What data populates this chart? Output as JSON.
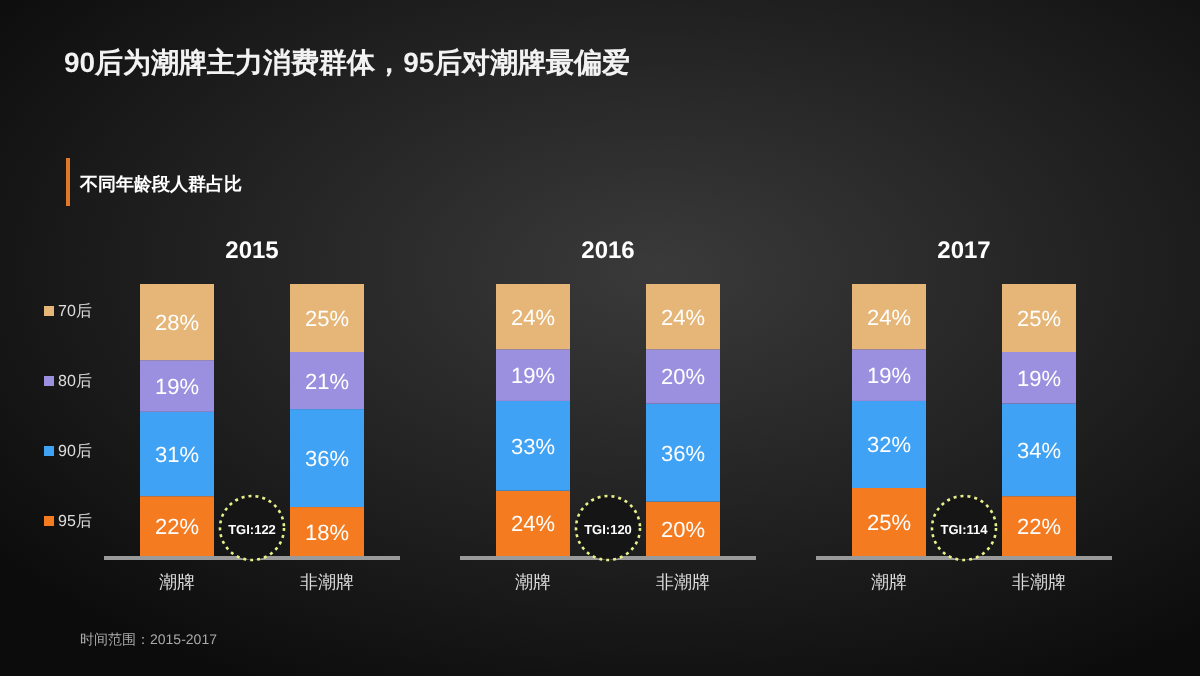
{
  "chart_data": [
    {
      "type": "bar",
      "title": "2015",
      "categories": [
        "潮牌",
        "非潮牌"
      ],
      "stacked": true,
      "legend": "left",
      "annotations": [
        "90后为潮牌主力消费群体，95后对潮牌最偏爱",
        "不同年龄段人群占比",
        "TGI:122",
        "时间范围：2015-2017"
      ],
      "series": [
        {
          "name": "95后",
          "color": "#f47b20",
          "values": [
            22,
            18
          ],
          "value_labels": [
            "22%",
            "18%"
          ]
        },
        {
          "name": "90后",
          "color": "#3fa2f5",
          "values": [
            31,
            36
          ],
          "value_labels": [
            "31%",
            "36%"
          ]
        },
        {
          "name": "80后",
          "color": "#9b8fe0",
          "values": [
            19,
            21
          ],
          "value_labels": [
            "19%",
            "21%"
          ]
        },
        {
          "name": "70后",
          "color": "#e5b677",
          "values": [
            28,
            25
          ],
          "value_labels": [
            "28%",
            "25%"
          ]
        }
      ]
    },
    {
      "type": "bar",
      "title": "2016",
      "categories": [
        "潮牌",
        "非潮牌"
      ],
      "stacked": true,
      "annotations": [
        "TGI:120"
      ],
      "series": [
        {
          "color": "#f47b20",
          "values": [
            24,
            20
          ],
          "value_labels": [
            "24%",
            "20%"
          ]
        },
        {
          "color": "#3fa2f5",
          "values": [
            33,
            36
          ],
          "value_labels": [
            "33%",
            "36%"
          ]
        },
        {
          "color": "#9b8fe0",
          "values": [
            19,
            20
          ],
          "value_labels": [
            "19%",
            "20%"
          ]
        },
        {
          "color": "#e5b677",
          "values": [
            24,
            24
          ],
          "value_labels": [
            "24%",
            "24%"
          ]
        }
      ]
    },
    {
      "type": "bar",
      "title": "2017",
      "categories": [
        "潮牌",
        "非潮牌"
      ],
      "stacked": true,
      "annotations": [
        "TGI:114"
      ],
      "series": [
        {
          "color": "#f47b20",
          "values": [
            25,
            22
          ],
          "value_labels": [
            "25%",
            "22%"
          ]
        },
        {
          "color": "#3fa2f5",
          "values": [
            32,
            34
          ],
          "value_labels": [
            "32%",
            "34%"
          ]
        },
        {
          "color": "#9b8fe0",
          "values": [
            19,
            19
          ],
          "value_labels": [
            "19%",
            "19%"
          ]
        },
        {
          "color": "#e5b677",
          "values": [
            24,
            25
          ],
          "value_labels": [
            "24%",
            "25%"
          ]
        }
      ]
    }
  ]
}
